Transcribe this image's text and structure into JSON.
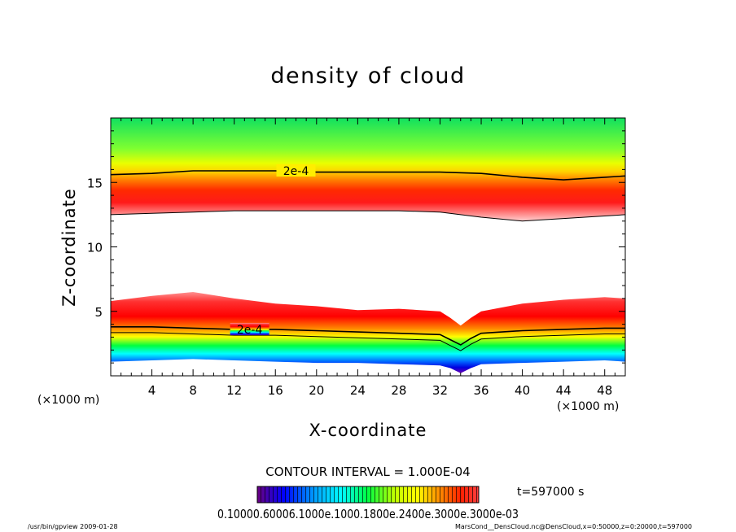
{
  "chart_data": {
    "type": "heatmap",
    "title": "density of cloud",
    "xlabel": "X-coordinate",
    "ylabel": "Z-coordinate",
    "x_unit": "(×1000 m)",
    "y_unit": "(×1000 m)",
    "xlim": [
      0,
      50
    ],
    "ylim": [
      0,
      20
    ],
    "x_ticks": [
      4,
      8,
      12,
      16,
      20,
      24,
      28,
      32,
      36,
      40,
      44,
      48
    ],
    "y_ticks": [
      5,
      10,
      15
    ],
    "contour_interval_text": "CONTOUR INTERVAL = 1.000E-04",
    "contour_labels": [
      "2e-4",
      "2e-4"
    ],
    "colorbar_labels": "0.10000.60006.1000e.1000.1800e.2400e.3000e.3000e-03",
    "time_label": "t=597000 s",
    "colors": {
      "max": "#ff0000",
      "mid_high": "#ffff00",
      "mid": "#00ff00",
      "mid_low": "#00ffff",
      "low": "#0000ff",
      "min": "#6600aa"
    },
    "cloud_layers": [
      {
        "name": "upper layer",
        "x": [
          0,
          4,
          8,
          12,
          16,
          20,
          24,
          28,
          32,
          36,
          40,
          44,
          48,
          50
        ],
        "top": [
          20,
          20,
          20,
          20,
          20,
          20,
          20,
          20,
          20,
          20,
          20,
          20,
          20,
          20
        ],
        "bottom": [
          12.5,
          12.6,
          12.7,
          12.8,
          12.8,
          12.8,
          12.8,
          12.8,
          12.7,
          12.3,
          12.0,
          12.2,
          12.4,
          12.5
        ],
        "core": [
          13.8,
          13.9,
          14.0,
          14.0,
          14.1,
          14.1,
          14.1,
          14.1,
          14.0,
          13.6,
          13.3,
          13.4,
          13.6,
          13.7
        ],
        "contour_2e4": [
          15.6,
          15.7,
          15.9,
          15.9,
          15.9,
          15.8,
          15.8,
          15.8,
          15.8,
          15.7,
          15.4,
          15.2,
          15.4,
          15.5
        ]
      },
      {
        "name": "lower layer",
        "x": [
          0,
          4,
          8,
          12,
          16,
          20,
          24,
          28,
          32,
          33,
          34,
          35,
          36,
          40,
          44,
          48,
          50
        ],
        "top": [
          5.8,
          6.2,
          6.5,
          6.0,
          5.6,
          5.4,
          5.1,
          5.2,
          5.0,
          4.5,
          3.9,
          4.5,
          5.0,
          5.6,
          5.9,
          6.1,
          6.0
        ],
        "bottom": [
          1.1,
          1.2,
          1.3,
          1.2,
          1.1,
          1.0,
          1.0,
          0.9,
          0.8,
          0.6,
          0.2,
          0.6,
          0.9,
          1.0,
          1.1,
          1.2,
          1.1
        ],
        "contour_2e4": [
          3.8,
          3.8,
          3.7,
          3.6,
          3.6,
          3.5,
          3.4,
          3.3,
          3.2,
          2.8,
          2.4,
          2.9,
          3.3,
          3.5,
          3.6,
          3.7,
          3.7
        ]
      }
    ]
  },
  "footer": {
    "left": "/usr/bin/gpview   2009-01-28",
    "right": "MarsCond__DensCloud.nc@DensCloud,x=0:50000,z=0:20000,t=597000"
  }
}
